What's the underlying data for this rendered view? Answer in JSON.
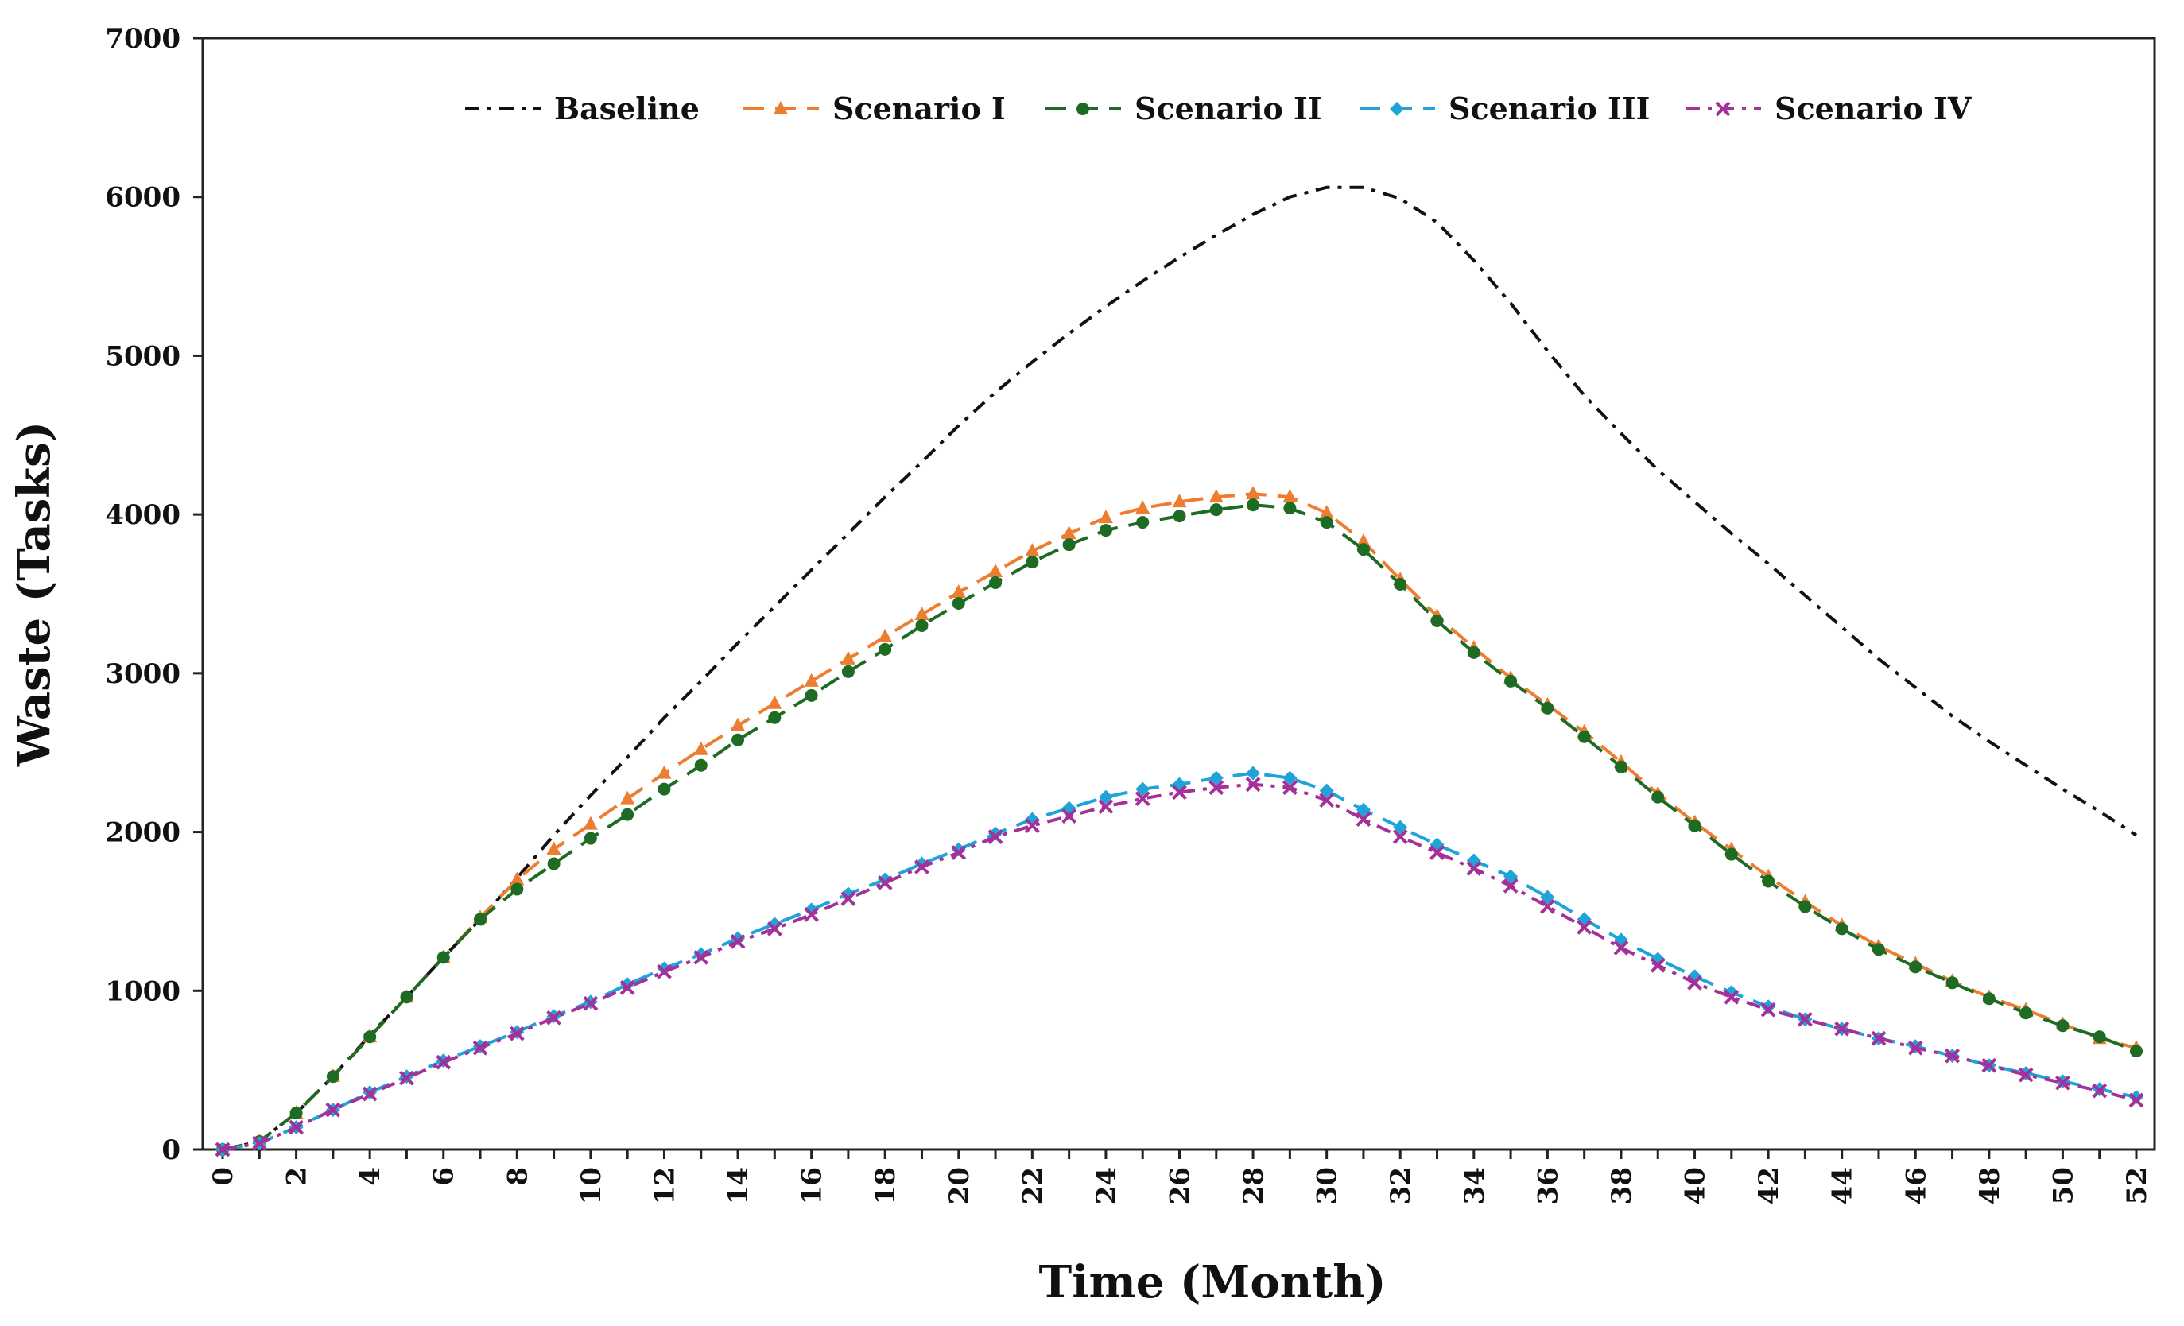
{
  "chart_data": {
    "type": "line",
    "xlabel": "Time (Month)",
    "ylabel": "Waste (Tasks)",
    "xlim": [
      0,
      52
    ],
    "ylim": [
      0,
      7000
    ],
    "xticks": [
      0,
      2,
      4,
      6,
      8,
      10,
      12,
      14,
      16,
      18,
      20,
      22,
      24,
      26,
      28,
      30,
      32,
      34,
      36,
      38,
      40,
      42,
      44,
      46,
      48,
      50,
      52
    ],
    "yticks": [
      0,
      1000,
      2000,
      3000,
      4000,
      5000,
      6000,
      7000
    ],
    "grid": false,
    "legend_position": "top",
    "x": [
      0,
      1,
      2,
      3,
      4,
      5,
      6,
      7,
      8,
      9,
      10,
      11,
      12,
      13,
      14,
      15,
      16,
      17,
      18,
      19,
      20,
      21,
      22,
      23,
      24,
      25,
      26,
      27,
      28,
      29,
      30,
      31,
      32,
      33,
      34,
      35,
      36,
      37,
      38,
      39,
      40,
      41,
      42,
      43,
      44,
      45,
      46,
      47,
      48,
      49,
      50,
      51,
      52
    ],
    "series": [
      {
        "name": "Baseline",
        "color": "#111111",
        "dash": "dash-dot",
        "marker": "none",
        "values": [
          0,
          50,
          230,
          460,
          720,
          960,
          1210,
          1450,
          1710,
          1980,
          2230,
          2470,
          2720,
          2950,
          3190,
          3420,
          3650,
          3880,
          4110,
          4330,
          4560,
          4770,
          4960,
          5140,
          5310,
          5470,
          5620,
          5760,
          5890,
          6000,
          6060,
          6060,
          5990,
          5840,
          5600,
          5330,
          5030,
          4750,
          4510,
          4280,
          4080,
          3880,
          3690,
          3490,
          3290,
          3090,
          2910,
          2730,
          2570,
          2420,
          2270,
          2130,
          1980
        ]
      },
      {
        "name": "Scenario I",
        "color": "#ED7D31",
        "dash": "dash",
        "marker": "triangle",
        "values": [
          0,
          50,
          230,
          460,
          710,
          960,
          1210,
          1460,
          1700,
          1890,
          2050,
          2210,
          2370,
          2520,
          2670,
          2810,
          2950,
          3090,
          3230,
          3370,
          3510,
          3640,
          3770,
          3880,
          3980,
          4040,
          4080,
          4110,
          4130,
          4110,
          4010,
          3830,
          3590,
          3360,
          3160,
          2970,
          2800,
          2630,
          2440,
          2240,
          2060,
          1890,
          1720,
          1560,
          1410,
          1280,
          1170,
          1060,
          960,
          880,
          790,
          700,
          640
        ]
      },
      {
        "name": "Scenario II",
        "color": "#1E6B24",
        "dash": "dash",
        "marker": "dot",
        "values": [
          0,
          50,
          230,
          460,
          710,
          960,
          1210,
          1450,
          1640,
          1800,
          1960,
          2110,
          2270,
          2420,
          2580,
          2720,
          2860,
          3010,
          3150,
          3300,
          3440,
          3570,
          3700,
          3810,
          3900,
          3950,
          3990,
          4030,
          4060,
          4040,
          3950,
          3780,
          3560,
          3330,
          3130,
          2950,
          2780,
          2600,
          2410,
          2220,
          2040,
          1860,
          1690,
          1530,
          1390,
          1260,
          1150,
          1050,
          950,
          860,
          780,
          710,
          620
        ]
      },
      {
        "name": "Scenario III",
        "color": "#1FA3D8",
        "dash": "dash",
        "marker": "diamond",
        "values": [
          0,
          40,
          140,
          250,
          360,
          460,
          560,
          650,
          740,
          840,
          930,
          1040,
          1140,
          1230,
          1330,
          1420,
          1510,
          1610,
          1700,
          1800,
          1890,
          1990,
          2080,
          2150,
          2220,
          2270,
          2300,
          2340,
          2370,
          2340,
          2260,
          2140,
          2030,
          1920,
          1820,
          1720,
          1590,
          1450,
          1320,
          1200,
          1090,
          990,
          900,
          820,
          760,
          700,
          650,
          590,
          530,
          480,
          430,
          380,
          330
        ]
      },
      {
        "name": "Scenario IV",
        "color": "#A5309A",
        "dash": "dash-dot",
        "marker": "x",
        "values": [
          0,
          40,
          140,
          250,
          350,
          450,
          550,
          640,
          730,
          830,
          920,
          1020,
          1120,
          1210,
          1310,
          1390,
          1480,
          1580,
          1680,
          1780,
          1870,
          1970,
          2040,
          2100,
          2160,
          2210,
          2250,
          2280,
          2300,
          2280,
          2200,
          2080,
          1970,
          1870,
          1770,
          1660,
          1530,
          1400,
          1270,
          1160,
          1050,
          960,
          880,
          820,
          760,
          700,
          640,
          590,
          530,
          470,
          420,
          370,
          310
        ]
      }
    ]
  }
}
